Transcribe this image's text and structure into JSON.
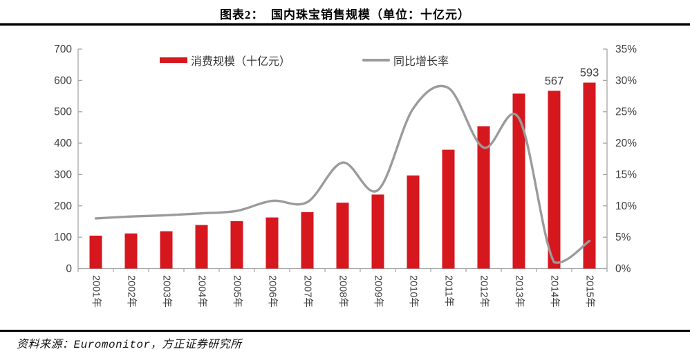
{
  "header": {
    "title": "图表2：  国内珠宝销售规模（单位：十亿元）"
  },
  "footer": {
    "source": "资料来源：Euromonitor，方正证券研究所"
  },
  "colors": {
    "bar": "#D6171E",
    "line": "#9B9B9B",
    "axis": "#A6A6A6",
    "tick_text": "#3F3F3F",
    "point_label_text": "#3F3F3F"
  },
  "chart_data": {
    "type": "bar",
    "subtype": "bar-line-combo",
    "title": "国内珠宝销售规模（单位：十亿元）",
    "categories": [
      "2001年",
      "2002年",
      "2003年",
      "2004年",
      "2005年",
      "2006年",
      "2007年",
      "2008年",
      "2009年",
      "2010年",
      "2011年",
      "2012年",
      "2013年",
      "2014年",
      "2015年"
    ],
    "series": [
      {
        "name": "消费规模（十亿元）",
        "type": "bar",
        "axis": "left",
        "values": [
          105,
          112,
          119,
          139,
          151,
          163,
          180,
          210,
          236,
          297,
          379,
          454,
          558,
          567,
          593
        ]
      },
      {
        "name": "同比增长率",
        "type": "line",
        "axis": "right",
        "values_percent": [
          8.0,
          8.3,
          8.5,
          8.8,
          9.2,
          10.8,
          10.6,
          16.9,
          12.5,
          25.5,
          28.8,
          19.3,
          24.0,
          1.0,
          4.4
        ]
      }
    ],
    "point_labels": [
      {
        "category": "2014年",
        "label": "567"
      },
      {
        "category": "2015年",
        "label": "593"
      }
    ],
    "left_axis": {
      "min": 0,
      "max": 700,
      "step": 100,
      "tick_labels": [
        "0",
        "100",
        "200",
        "300",
        "400",
        "500",
        "600",
        "700"
      ]
    },
    "right_axis": {
      "min": 0,
      "max": 35,
      "step": 5,
      "tick_labels": [
        "0%",
        "5%",
        "10%",
        "15%",
        "20%",
        "25%",
        "30%",
        "35%"
      ]
    },
    "legend_position": "top",
    "grid": false
  }
}
